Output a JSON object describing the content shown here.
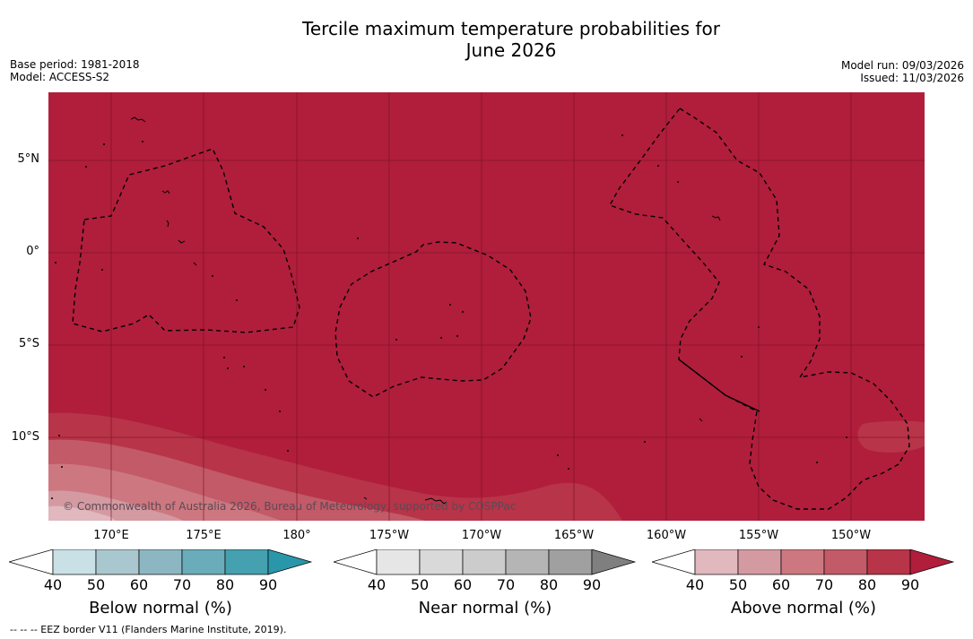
{
  "title_line1": "Tercile maximum temperature probabilities for",
  "title_line2": "June 2026",
  "base_period": "Base period: 1981-2018",
  "model": "Model: ACCESS-S2",
  "model_run": "Model run: 09/03/2026",
  "issued": "Issued: 11/03/2026",
  "credit": "© Commonwealth of Australia 2026, Bureau of Meteorology, supported by COSPPac",
  "footnote": "--  --  -- EEZ border V11 (Flanders Marine Institute, 2019).",
  "lat_labels": [
    "5°N",
    "0°",
    "5°S",
    "10°S"
  ],
  "lon_labels": [
    "170°E",
    "175°E",
    "180°",
    "175°W",
    "170°W",
    "165°W",
    "160°W",
    "155°W",
    "150°W"
  ],
  "colorbars": [
    {
      "title": "Below normal (%)",
      "ticks": [
        "40",
        "50",
        "60",
        "70",
        "80",
        "90"
      ],
      "colors": [
        "#ffffff",
        "#c8e0e6",
        "#a9c7ce",
        "#8cb7c2",
        "#6aacb9",
        "#45a0b0",
        "#2a96aa"
      ]
    },
    {
      "title": "Near normal (%)",
      "ticks": [
        "40",
        "50",
        "60",
        "70",
        "80",
        "90"
      ],
      "colors": [
        "#ffffff",
        "#e6e6e6",
        "#d9d9d9",
        "#cccccc",
        "#b5b5b5",
        "#a0a0a0",
        "#7f7f7f"
      ]
    },
    {
      "title": "Above normal (%)",
      "ticks": [
        "40",
        "50",
        "60",
        "70",
        "80",
        "90"
      ],
      "colors": [
        "#ffffff",
        "#e0b8be",
        "#d49aa2",
        "#cd7880",
        "#c25a68",
        "#b83448",
        "#b01e3c"
      ]
    }
  ],
  "map_colors": {
    "dominant": "#b01e3c",
    "above_80": "#b83448",
    "above_70": "#c25a68",
    "above_60": "#cd7880",
    "above_50": "#d49aa2",
    "above_40": "#e0b8be"
  }
}
